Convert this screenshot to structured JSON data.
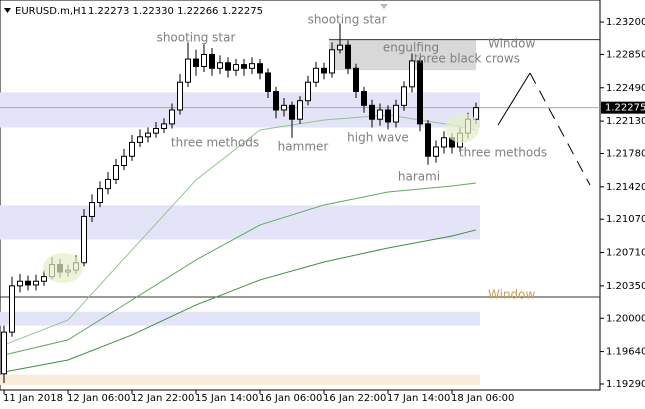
{
  "chart_data": {
    "type": "candlestick",
    "symbol": "EURUSD.m,H1",
    "quote": "1.22273 1.22330 1.22266 1.22275",
    "current_price": 1.22275,
    "ylim": [
      1.19225,
      1.23438
    ],
    "yticks": [
      {
        "value": 1.232,
        "label": "1.23200"
      },
      {
        "value": 1.2285,
        "label": "1.22850"
      },
      {
        "value": 1.2249,
        "label": "1.22490"
      },
      {
        "value": 1.2213,
        "label": "1.22130"
      },
      {
        "value": 1.2178,
        "label": "1.21780"
      },
      {
        "value": 1.2142,
        "label": "1.21420"
      },
      {
        "value": 1.2107,
        "label": "1.21070"
      },
      {
        "value": 1.2071,
        "label": "1.20710"
      },
      {
        "value": 1.2035,
        "label": "1.20350"
      },
      {
        "value": 1.2,
        "label": "1.20000"
      },
      {
        "value": 1.1964,
        "label": "1.19640"
      },
      {
        "value": 1.1929,
        "label": "1.19290"
      }
    ],
    "categories": [
      "11 Jan 2018",
      null,
      null,
      null,
      null,
      null,
      null,
      null,
      "12 Jan 06:00",
      null,
      null,
      null,
      null,
      null,
      null,
      null,
      "12 Jan 22:00",
      null,
      null,
      null,
      null,
      null,
      null,
      null,
      "15 Jan 14:00",
      null,
      null,
      null,
      null,
      null,
      null,
      null,
      "16 Jan 06:00",
      null,
      null,
      null,
      null,
      null,
      null,
      null,
      "16 Jan 22:00",
      null,
      null,
      null,
      null,
      null,
      null,
      null,
      "17 Jan 14:00",
      null,
      null,
      null,
      null,
      null,
      null,
      null,
      "18 Jan 06:00",
      null,
      null,
      null
    ],
    "open": [
      1.194,
      1.1985,
      1.2035,
      1.204,
      1.2036,
      1.204,
      1.2045,
      1.2058,
      1.205,
      1.2052,
      1.206,
      1.211,
      1.2125,
      1.214,
      1.215,
      1.2165,
      1.2175,
      1.219,
      1.2196,
      1.22,
      1.2205,
      1.221,
      1.2225,
      1.2255,
      1.228,
      1.2272,
      1.2285,
      1.227,
      1.2276,
      1.2268,
      1.2274,
      1.227,
      1.2275,
      1.2265,
      1.2245,
      1.2225,
      1.223,
      1.2215,
      1.2235,
      1.2255,
      1.227,
      1.2265,
      1.229,
      1.2295,
      1.227,
      1.2245,
      1.223,
      1.2215,
      1.2225,
      1.2212,
      1.223,
      1.225,
      1.2278,
      1.221,
      1.2175,
      1.2185,
      1.2195,
      1.2185,
      1.22,
      1.2215
    ],
    "high": [
      1.1992,
      1.2045,
      1.2048,
      1.2046,
      1.2047,
      1.2052,
      1.2066,
      1.2064,
      1.2058,
      1.2068,
      1.2118,
      1.2134,
      1.2148,
      1.2158,
      1.2172,
      1.2183,
      1.2198,
      1.2204,
      1.2206,
      1.2212,
      1.2216,
      1.2232,
      1.2264,
      1.2298,
      1.229,
      1.2296,
      1.2292,
      1.2284,
      1.2282,
      1.228,
      1.228,
      1.2282,
      1.228,
      1.227,
      1.225,
      1.2238,
      1.2234,
      1.224,
      1.2262,
      1.2277,
      1.2276,
      1.2298,
      1.2318,
      1.23,
      1.2275,
      1.225,
      1.2236,
      1.2232,
      1.223,
      1.2236,
      1.2256,
      1.2286,
      1.2282,
      1.2214,
      1.2192,
      1.2202,
      1.22,
      1.2206,
      1.2222,
      1.2233
    ],
    "low": [
      1.193,
      1.198,
      1.2028,
      1.203,
      1.203,
      1.2035,
      1.2042,
      1.2044,
      1.2045,
      1.2048,
      1.2056,
      1.2104,
      1.212,
      1.2134,
      1.2145,
      1.216,
      1.217,
      1.2185,
      1.219,
      1.2195,
      1.22,
      1.2205,
      1.222,
      1.225,
      1.2262,
      1.2266,
      1.2262,
      1.2264,
      1.226,
      1.2262,
      1.2262,
      1.2264,
      1.2258,
      1.2238,
      1.2216,
      1.2218,
      1.2195,
      1.221,
      1.223,
      1.225,
      1.2258,
      1.226,
      1.2286,
      1.2264,
      1.2238,
      1.2222,
      1.2206,
      1.2208,
      1.2204,
      1.2206,
      1.2224,
      1.2244,
      1.2202,
      1.2166,
      1.2168,
      1.2178,
      1.2178,
      1.218,
      1.2194,
      1.221
    ],
    "close": [
      1.1985,
      1.2035,
      1.204,
      1.2036,
      1.204,
      1.2045,
      1.2058,
      1.205,
      1.2052,
      1.206,
      1.211,
      1.2125,
      1.214,
      1.215,
      1.2165,
      1.2175,
      1.219,
      1.2196,
      1.22,
      1.2205,
      1.221,
      1.2225,
      1.2255,
      1.228,
      1.2272,
      1.2285,
      1.227,
      1.2276,
      1.2268,
      1.2274,
      1.227,
      1.2275,
      1.2265,
      1.2245,
      1.2225,
      1.223,
      1.2215,
      1.2235,
      1.2255,
      1.227,
      1.2265,
      1.229,
      1.2295,
      1.227,
      1.2245,
      1.223,
      1.2215,
      1.2225,
      1.2212,
      1.223,
      1.225,
      1.2278,
      1.221,
      1.2175,
      1.2185,
      1.2195,
      1.2185,
      1.22,
      1.2215,
      1.22275
    ],
    "moving_averages": [
      {
        "color": "#8fc58f",
        "x": [
          0,
          8,
          16,
          24,
          32,
          40,
          48,
          56,
          59
        ],
        "values": [
          1.19712,
          1.19982,
          1.20738,
          1.21494,
          1.22034,
          1.22142,
          1.22196,
          1.22088,
          1.22034
        ]
      },
      {
        "color": "#5fa85f",
        "x": [
          0,
          8,
          16,
          24,
          32,
          40,
          48,
          56,
          59
        ],
        "values": [
          1.19603,
          1.19766,
          1.20198,
          1.2063,
          1.21008,
          1.21224,
          1.21364,
          1.21429,
          1.21461
        ]
      },
      {
        "color": "#3f8f3f",
        "x": [
          0,
          8,
          16,
          24,
          32,
          40,
          48,
          56,
          59
        ],
        "values": [
          1.1942,
          1.19549,
          1.1982,
          1.20144,
          1.20414,
          1.20608,
          1.20759,
          1.20889,
          1.20954
        ]
      }
    ],
    "zones": [
      {
        "top": 1.2244,
        "bottom": 1.2206,
        "color": "#e4e4f8"
      },
      {
        "top": 1.2122,
        "bottom": 1.2085,
        "color": "#e4e4f8"
      },
      {
        "top": 1.2007,
        "bottom": 1.1992,
        "color": "#e4e4f8"
      },
      {
        "top": 1.1939,
        "bottom": 1.1928,
        "color": "#f8ecd8"
      }
    ],
    "box": {
      "x": [
        41,
        59
      ],
      "top": 1.2301,
      "bottom": 1.2268,
      "color": "#d8d8d8"
    },
    "window_line": 1.2023,
    "annotations": [
      "shooting star",
      "shooting star",
      "three methods",
      "hammer",
      "engulfing",
      "three black crows",
      "high wave",
      "harami",
      "three methods",
      "Window",
      "Window"
    ]
  }
}
